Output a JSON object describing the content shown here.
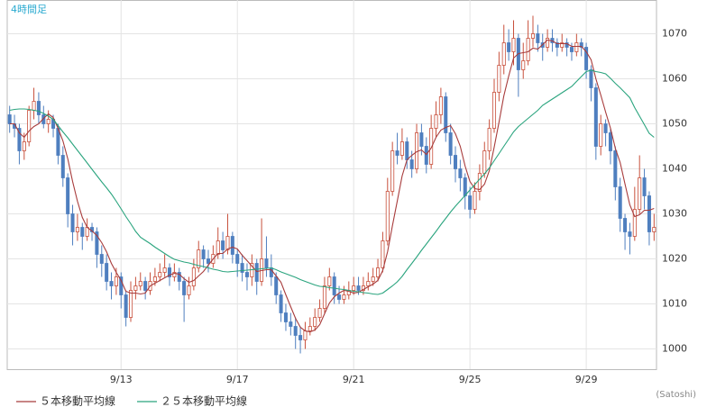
{
  "chart_data": {
    "type": "candlestick",
    "label": "4時間足",
    "credit": "(Satoshi)",
    "categories": [
      null,
      null,
      null,
      null,
      null,
      null,
      null,
      null,
      null,
      null,
      null,
      null,
      null,
      null,
      null,
      null,
      null,
      null,
      null,
      null,
      null,
      null,
      null,
      "9/13",
      null,
      null,
      null,
      null,
      null,
      null,
      null,
      null,
      null,
      null,
      null,
      null,
      null,
      null,
      null,
      null,
      null,
      null,
      null,
      null,
      null,
      null,
      null,
      "9/17",
      null,
      null,
      null,
      null,
      null,
      null,
      null,
      null,
      null,
      null,
      null,
      null,
      null,
      null,
      null,
      null,
      null,
      null,
      null,
      null,
      null,
      null,
      null,
      "9/21",
      null,
      null,
      null,
      null,
      null,
      null,
      null,
      null,
      null,
      null,
      null,
      null,
      null,
      null,
      null,
      null,
      null,
      null,
      null,
      null,
      null,
      null,
      null,
      "9/25",
      null,
      null,
      null,
      null,
      null,
      null,
      null,
      null,
      null,
      null,
      null,
      null,
      null,
      null,
      null,
      null,
      null,
      null,
      null,
      null,
      null,
      null,
      null,
      "9/29",
      null,
      null,
      null,
      null,
      null,
      null,
      null,
      null,
      null,
      null,
      null,
      null,
      null,
      null
    ],
    "open": [
      1052,
      1050,
      1049,
      1044,
      1046,
      1053,
      1055,
      1052,
      1050,
      1051,
      1049,
      1043,
      1038,
      1030,
      1026,
      1027,
      1025,
      1027,
      1026,
      1021,
      1019,
      1015,
      1014,
      1016,
      1012,
      1007,
      1013,
      1014,
      1015,
      1013,
      1015,
      1016,
      1017,
      1018,
      1016,
      1017,
      1015,
      1012,
      1014,
      1018,
      1022,
      1020,
      1019,
      1021,
      1024,
      1022,
      1025,
      1021,
      1019,
      1017,
      1016,
      1019,
      1015,
      1020,
      1018,
      1016,
      1012,
      1008,
      1006,
      1005,
      1003,
      1002,
      1004,
      1005,
      1007,
      1009,
      1014,
      1016,
      1012,
      1011,
      1012,
      1013,
      1014,
      1013,
      1014,
      1015,
      1016,
      1018,
      1024,
      1035,
      1044,
      1043,
      1046,
      1042,
      1040,
      1048,
      1045,
      1041,
      1049,
      1052,
      1056,
      1048,
      1043,
      1040,
      1038,
      1034,
      1031,
      1035,
      1039,
      1044,
      1049,
      1057,
      1063,
      1068,
      1066,
      1069,
      1062,
      1064,
      1069,
      1070,
      1068,
      1067,
      1069,
      1068,
      1067,
      1068,
      1067,
      1066,
      1068,
      1067,
      1062,
      1058,
      1045,
      1050,
      1048,
      1044,
      1036,
      1029,
      1026,
      1025,
      1031,
      1038,
      1034,
      1026
    ],
    "high": [
      1054,
      1052,
      1050,
      1048,
      1054,
      1058,
      1057,
      1054,
      1053,
      1052,
      1050,
      1045,
      1039,
      1032,
      1030,
      1028,
      1029,
      1028,
      1027,
      1023,
      1021,
      1017,
      1018,
      1017,
      1013,
      1015,
      1016,
      1017,
      1016,
      1017,
      1018,
      1019,
      1021,
      1019,
      1019,
      1018,
      1016,
      1016,
      1020,
      1024,
      1023,
      1022,
      1023,
      1027,
      1026,
      1030,
      1026,
      1022,
      1021,
      1019,
      1021,
      1020,
      1029,
      1025,
      1021,
      1017,
      1013,
      1010,
      1008,
      1007,
      1005,
      1006,
      1007,
      1009,
      1011,
      1016,
      1018,
      1017,
      1014,
      1014,
      1015,
      1016,
      1016,
      1016,
      1017,
      1018,
      1020,
      1026,
      1038,
      1046,
      1048,
      1049,
      1047,
      1044,
      1050,
      1050,
      1047,
      1052,
      1055,
      1058,
      1057,
      1050,
      1045,
      1042,
      1039,
      1036,
      1037,
      1041,
      1046,
      1051,
      1060,
      1066,
      1072,
      1071,
      1073,
      1070,
      1068,
      1073,
      1074,
      1072,
      1070,
      1071,
      1071,
      1069,
      1070,
      1069,
      1068,
      1070,
      1069,
      1068,
      1063,
      1059,
      1052,
      1051,
      1049,
      1045,
      1038,
      1030,
      1028,
      1036,
      1043,
      1040,
      1035,
      1030
    ],
    "low": [
      1048,
      1047,
      1041,
      1042,
      1045,
      1051,
      1050,
      1049,
      1048,
      1047,
      1041,
      1036,
      1027,
      1023,
      1024,
      1022,
      1024,
      1024,
      1018,
      1016,
      1013,
      1011,
      1012,
      1009,
      1005,
      1006,
      1011,
      1013,
      1011,
      1012,
      1014,
      1015,
      1016,
      1014,
      1015,
      1013,
      1006,
      1011,
      1013,
      1017,
      1018,
      1017,
      1018,
      1020,
      1020,
      1021,
      1019,
      1016,
      1015,
      1013,
      1014,
      1012,
      1014,
      1016,
      1014,
      1010,
      1006,
      1004,
      1003,
      1000,
      999,
      1000,
      1003,
      1004,
      1006,
      1008,
      1013,
      1010,
      1010,
      1010,
      1011,
      1012,
      1012,
      1012,
      1013,
      1014,
      1015,
      1017,
      1023,
      1034,
      1041,
      1042,
      1040,
      1038,
      1039,
      1043,
      1039,
      1040,
      1047,
      1050,
      1046,
      1041,
      1037,
      1035,
      1031,
      1029,
      1030,
      1033,
      1038,
      1042,
      1048,
      1055,
      1061,
      1064,
      1063,
      1056,
      1060,
      1063,
      1067,
      1066,
      1064,
      1066,
      1066,
      1065,
      1066,
      1065,
      1064,
      1065,
      1065,
      1060,
      1055,
      1042,
      1043,
      1045,
      1041,
      1033,
      1026,
      1022,
      1021,
      1024,
      1030,
      1031,
      1023,
      1024
    ],
    "close": [
      1050,
      1049,
      1044,
      1046,
      1053,
      1055,
      1052,
      1050,
      1051,
      1049,
      1043,
      1038,
      1030,
      1026,
      1027,
      1025,
      1027,
      1026,
      1021,
      1019,
      1015,
      1014,
      1016,
      1012,
      1007,
      1013,
      1014,
      1015,
      1013,
      1015,
      1016,
      1017,
      1018,
      1016,
      1017,
      1015,
      1012,
      1014,
      1018,
      1022,
      1020,
      1019,
      1021,
      1024,
      1022,
      1025,
      1021,
      1019,
      1017,
      1016,
      1019,
      1015,
      1020,
      1018,
      1016,
      1012,
      1008,
      1006,
      1005,
      1003,
      1002,
      1004,
      1005,
      1007,
      1009,
      1014,
      1016,
      1012,
      1011,
      1012,
      1013,
      1014,
      1013,
      1014,
      1015,
      1016,
      1018,
      1024,
      1035,
      1044,
      1043,
      1046,
      1042,
      1040,
      1048,
      1045,
      1041,
      1049,
      1052,
      1056,
      1048,
      1043,
      1040,
      1038,
      1034,
      1031,
      1035,
      1039,
      1044,
      1049,
      1057,
      1063,
      1068,
      1066,
      1069,
      1062,
      1064,
      1069,
      1070,
      1068,
      1067,
      1069,
      1068,
      1067,
      1068,
      1067,
      1066,
      1068,
      1067,
      1062,
      1058,
      1045,
      1050,
      1048,
      1044,
      1036,
      1029,
      1026,
      1025,
      1031,
      1038,
      1034,
      1026,
      1027
    ],
    "up_color": "#c8503c",
    "down_color": "#4f7fbf",
    "series": [
      {
        "name": "５本移動平均線",
        "color": "#a83c3c",
        "values": [
          1050,
          1050,
          1048,
          1047,
          1048.4,
          1049.4,
          1050,
          1051.2,
          1052.2,
          1051.4,
          1049,
          1046.2,
          1042.2,
          1037.2,
          1032.8,
          1029.2,
          1027,
          1026.2,
          1025.2,
          1023.6,
          1021.6,
          1019,
          1017,
          1015.2,
          1012.8,
          1012.4,
          1012.4,
          1012.2,
          1012.4,
          1014,
          1014.6,
          1015.2,
          1015.8,
          1016.4,
          1016.8,
          1016.6,
          1015.6,
          1014.8,
          1015.2,
          1016.2,
          1017.2,
          1018.6,
          1020,
          1021.2,
          1021.2,
          1022.2,
          1022.6,
          1022.2,
          1020.8,
          1019.6,
          1018.4,
          1017.2,
          1017.4,
          1017.6,
          1017.6,
          1016.2,
          1014.8,
          1012,
          1009.4,
          1006.8,
          1004.8,
          1004,
          1003.8,
          1004.2,
          1005.4,
          1007.8,
          1010.2,
          1011.6,
          1012.4,
          1013,
          1012.8,
          1012.4,
          1012.6,
          1013.2,
          1013.8,
          1014.4,
          1015.2,
          1017.4,
          1021.6,
          1027.4,
          1032.8,
          1038.4,
          1042,
          1043,
          1043.8,
          1044.2,
          1043.2,
          1044.6,
          1047,
          1048.6,
          1049.2,
          1049.6,
          1047.8,
          1045,
          1040.6,
          1037.2,
          1035.6,
          1035.4,
          1036.6,
          1039.6,
          1044.8,
          1050.4,
          1056.2,
          1060.6,
          1064.6,
          1065.6,
          1065.8,
          1066,
          1066.8,
          1066.6,
          1067.6,
          1068.6,
          1068.4,
          1067.8,
          1067.8,
          1067.8,
          1067.2,
          1067.2,
          1067.2,
          1066,
          1064.2,
          1060,
          1056.4,
          1052.6,
          1049,
          1044.6,
          1041.4,
          1036.6,
          1032,
          1029.4,
          1029.8,
          1030.8,
          1030.8,
          1031.2
        ]
      },
      {
        "name": "２５本移動平均線",
        "color": "#2aa47e",
        "values": [
          1053,
          1053.2,
          1053.3,
          1053.3,
          1053.2,
          1053,
          1052.8,
          1052.3,
          1051.7,
          1051,
          1049.6,
          1048.2,
          1046.9,
          1045.5,
          1044.1,
          1042.7,
          1041.3,
          1039.9,
          1038.5,
          1037.1,
          1035.8,
          1034.4,
          1032.8,
          1031.1,
          1029.4,
          1027.8,
          1026.1,
          1024.8,
          1024.1,
          1023.4,
          1022.6,
          1021.9,
          1021.2,
          1020.5,
          1019.9,
          1019.6,
          1019.3,
          1019.1,
          1018.8,
          1018.5,
          1018.3,
          1018,
          1017.7,
          1017.5,
          1017.2,
          1017.1,
          1017.2,
          1017.3,
          1017.4,
          1017.5,
          1017.6,
          1017.7,
          1017.8,
          1017.9,
          1018,
          1017.6,
          1017.1,
          1016.7,
          1016.3,
          1015.9,
          1015.4,
          1015,
          1014.6,
          1014.2,
          1013.9,
          1013.8,
          1013.6,
          1013.5,
          1013.3,
          1013.2,
          1013,
          1012.8,
          1012.7,
          1012.5,
          1012.4,
          1012.2,
          1012.1,
          1012.4,
          1013.2,
          1014,
          1014.9,
          1016.1,
          1017.6,
          1019,
          1020.4,
          1021.9,
          1023.3,
          1024.7,
          1026.1,
          1027.6,
          1029,
          1030.4,
          1031.7,
          1032.9,
          1034.1,
          1035.3,
          1036.5,
          1037.7,
          1038.9,
          1040.2,
          1041.8,
          1043.4,
          1045,
          1046.6,
          1048.2,
          1049.4,
          1050.3,
          1051.2,
          1052.1,
          1053,
          1054.1,
          1054.8,
          1055.5,
          1056.2,
          1056.9,
          1057.6,
          1058.3,
          1059.4,
          1060.5,
          1061.6,
          1061.9,
          1061.6,
          1061.4,
          1061.1,
          1060.1,
          1059,
          1058,
          1056.9,
          1055.8,
          1053.6,
          1051.7,
          1049.8,
          1047.9,
          1047
        ]
      }
    ],
    "ylim": [
      995.5,
      1077.5
    ],
    "yticks": [
      1000,
      1010,
      1020,
      1030,
      1040,
      1050,
      1060,
      1070
    ],
    "grid": true
  }
}
